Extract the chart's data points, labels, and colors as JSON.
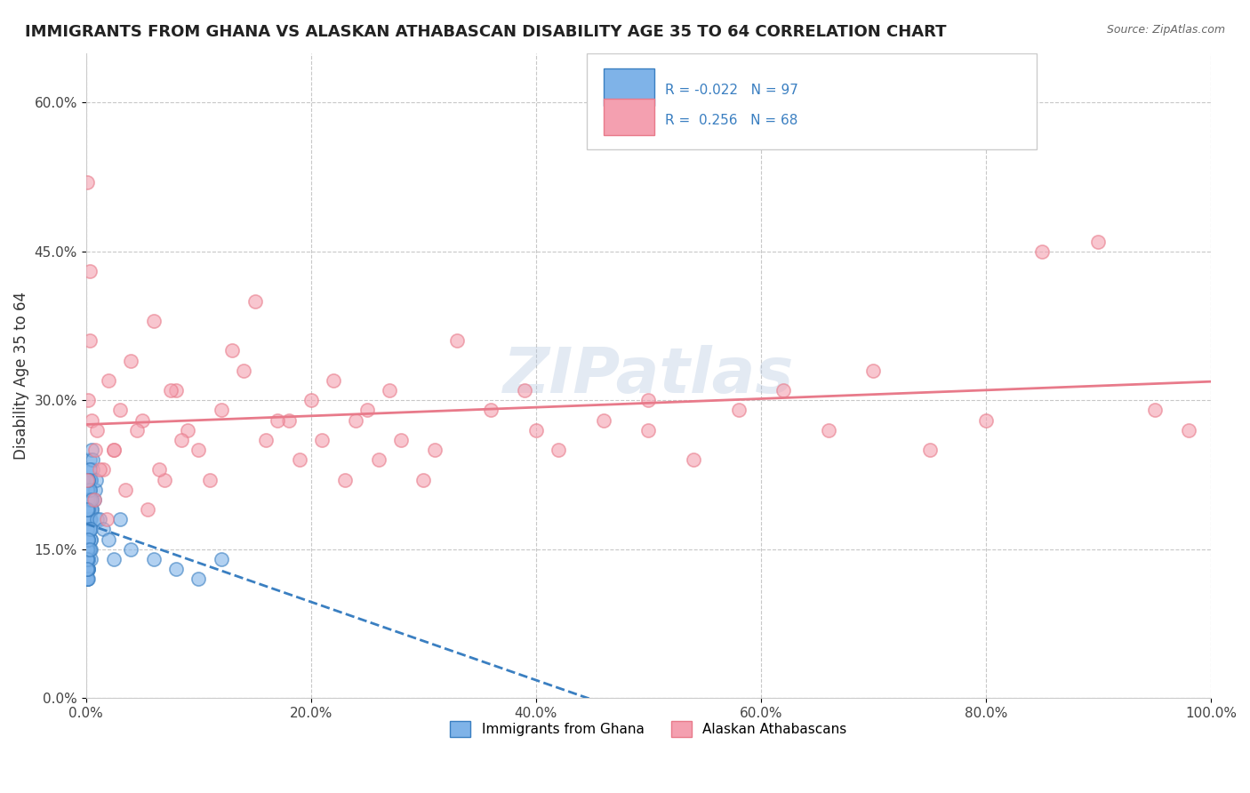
{
  "title": "IMMIGRANTS FROM GHANA VS ALASKAN ATHABASCAN DISABILITY AGE 35 TO 64 CORRELATION CHART",
  "source": "Source: ZipAtlas.com",
  "xlabel": "",
  "ylabel": "Disability Age 35 to 64",
  "xlim": [
    0.0,
    1.0
  ],
  "ylim": [
    0.0,
    0.65
  ],
  "xticks": [
    0.0,
    0.2,
    0.4,
    0.6,
    0.8,
    1.0
  ],
  "xticklabels": [
    "0.0%",
    "20.0%",
    "40.0%",
    "60.0%",
    "80.0%",
    "100.0%"
  ],
  "yticks": [
    0.0,
    0.15,
    0.3,
    0.45,
    0.6
  ],
  "yticklabels": [
    "0.0%",
    "15.0%",
    "30.0%",
    "45.0%",
    "60.0%"
  ],
  "ghana_R": -0.022,
  "ghana_N": 97,
  "athabascan_R": 0.256,
  "athabascan_N": 68,
  "ghana_color": "#7fb3e8",
  "athabascan_color": "#f4a0b0",
  "ghana_line_color": "#3a7fc1",
  "athabascan_line_color": "#e87a8a",
  "background_color": "#ffffff",
  "grid_color": "#c8c8c8",
  "watermark": "ZIPatlas",
  "ghana_x": [
    0.001,
    0.002,
    0.001,
    0.003,
    0.002,
    0.001,
    0.004,
    0.002,
    0.003,
    0.001,
    0.005,
    0.003,
    0.002,
    0.001,
    0.006,
    0.002,
    0.003,
    0.004,
    0.001,
    0.002,
    0.005,
    0.003,
    0.001,
    0.002,
    0.004,
    0.001,
    0.003,
    0.002,
    0.001,
    0.005,
    0.002,
    0.003,
    0.001,
    0.004,
    0.002,
    0.001,
    0.006,
    0.003,
    0.002,
    0.001,
    0.007,
    0.002,
    0.003,
    0.001,
    0.004,
    0.002,
    0.001,
    0.003,
    0.002,
    0.001,
    0.008,
    0.002,
    0.004,
    0.001,
    0.003,
    0.002,
    0.001,
    0.005,
    0.002,
    0.001,
    0.009,
    0.003,
    0.001,
    0.002,
    0.004,
    0.001,
    0.003,
    0.001,
    0.002,
    0.001,
    0.01,
    0.002,
    0.001,
    0.003,
    0.002,
    0.001,
    0.004,
    0.002,
    0.001,
    0.003,
    0.012,
    0.002,
    0.001,
    0.005,
    0.002,
    0.001,
    0.015,
    0.003,
    0.001,
    0.02,
    0.025,
    0.03,
    0.04,
    0.06,
    0.08,
    0.1,
    0.12
  ],
  "ghana_y": [
    0.22,
    0.18,
    0.15,
    0.24,
    0.2,
    0.12,
    0.16,
    0.14,
    0.19,
    0.17,
    0.25,
    0.21,
    0.13,
    0.18,
    0.23,
    0.15,
    0.2,
    0.22,
    0.16,
    0.14,
    0.19,
    0.17,
    0.12,
    0.21,
    0.18,
    0.15,
    0.23,
    0.14,
    0.16,
    0.2,
    0.13,
    0.22,
    0.18,
    0.15,
    0.19,
    0.12,
    0.24,
    0.17,
    0.21,
    0.14,
    0.2,
    0.16,
    0.18,
    0.13,
    0.22,
    0.15,
    0.19,
    0.17,
    0.14,
    0.12,
    0.21,
    0.18,
    0.16,
    0.2,
    0.23,
    0.14,
    0.17,
    0.19,
    0.13,
    0.15,
    0.22,
    0.18,
    0.16,
    0.2,
    0.14,
    0.19,
    0.17,
    0.15,
    0.12,
    0.21,
    0.18,
    0.16,
    0.14,
    0.2,
    0.22,
    0.13,
    0.17,
    0.19,
    0.15,
    0.21,
    0.18,
    0.16,
    0.14,
    0.2,
    0.22,
    0.13,
    0.17,
    0.15,
    0.19,
    0.16,
    0.14,
    0.18,
    0.15,
    0.14,
    0.13,
    0.12,
    0.14
  ],
  "athabascan_x": [
    0.001,
    0.002,
    0.003,
    0.005,
    0.008,
    0.01,
    0.015,
    0.02,
    0.025,
    0.03,
    0.04,
    0.05,
    0.06,
    0.07,
    0.08,
    0.09,
    0.1,
    0.12,
    0.14,
    0.16,
    0.18,
    0.2,
    0.22,
    0.24,
    0.26,
    0.28,
    0.3,
    0.33,
    0.36,
    0.39,
    0.42,
    0.46,
    0.5,
    0.54,
    0.58,
    0.62,
    0.66,
    0.7,
    0.75,
    0.8,
    0.85,
    0.9,
    0.95,
    0.98,
    0.001,
    0.003,
    0.007,
    0.012,
    0.018,
    0.025,
    0.035,
    0.045,
    0.055,
    0.065,
    0.075,
    0.085,
    0.11,
    0.13,
    0.15,
    0.17,
    0.19,
    0.21,
    0.23,
    0.25,
    0.27,
    0.31,
    0.4,
    0.5
  ],
  "athabascan_y": [
    0.22,
    0.3,
    0.36,
    0.28,
    0.25,
    0.27,
    0.23,
    0.32,
    0.25,
    0.29,
    0.34,
    0.28,
    0.38,
    0.22,
    0.31,
    0.27,
    0.25,
    0.29,
    0.33,
    0.26,
    0.28,
    0.3,
    0.32,
    0.28,
    0.24,
    0.26,
    0.22,
    0.36,
    0.29,
    0.31,
    0.25,
    0.28,
    0.27,
    0.24,
    0.29,
    0.31,
    0.27,
    0.33,
    0.25,
    0.28,
    0.45,
    0.46,
    0.29,
    0.27,
    0.52,
    0.43,
    0.2,
    0.23,
    0.18,
    0.25,
    0.21,
    0.27,
    0.19,
    0.23,
    0.31,
    0.26,
    0.22,
    0.35,
    0.4,
    0.28,
    0.24,
    0.26,
    0.22,
    0.29,
    0.31,
    0.25,
    0.27,
    0.3
  ]
}
